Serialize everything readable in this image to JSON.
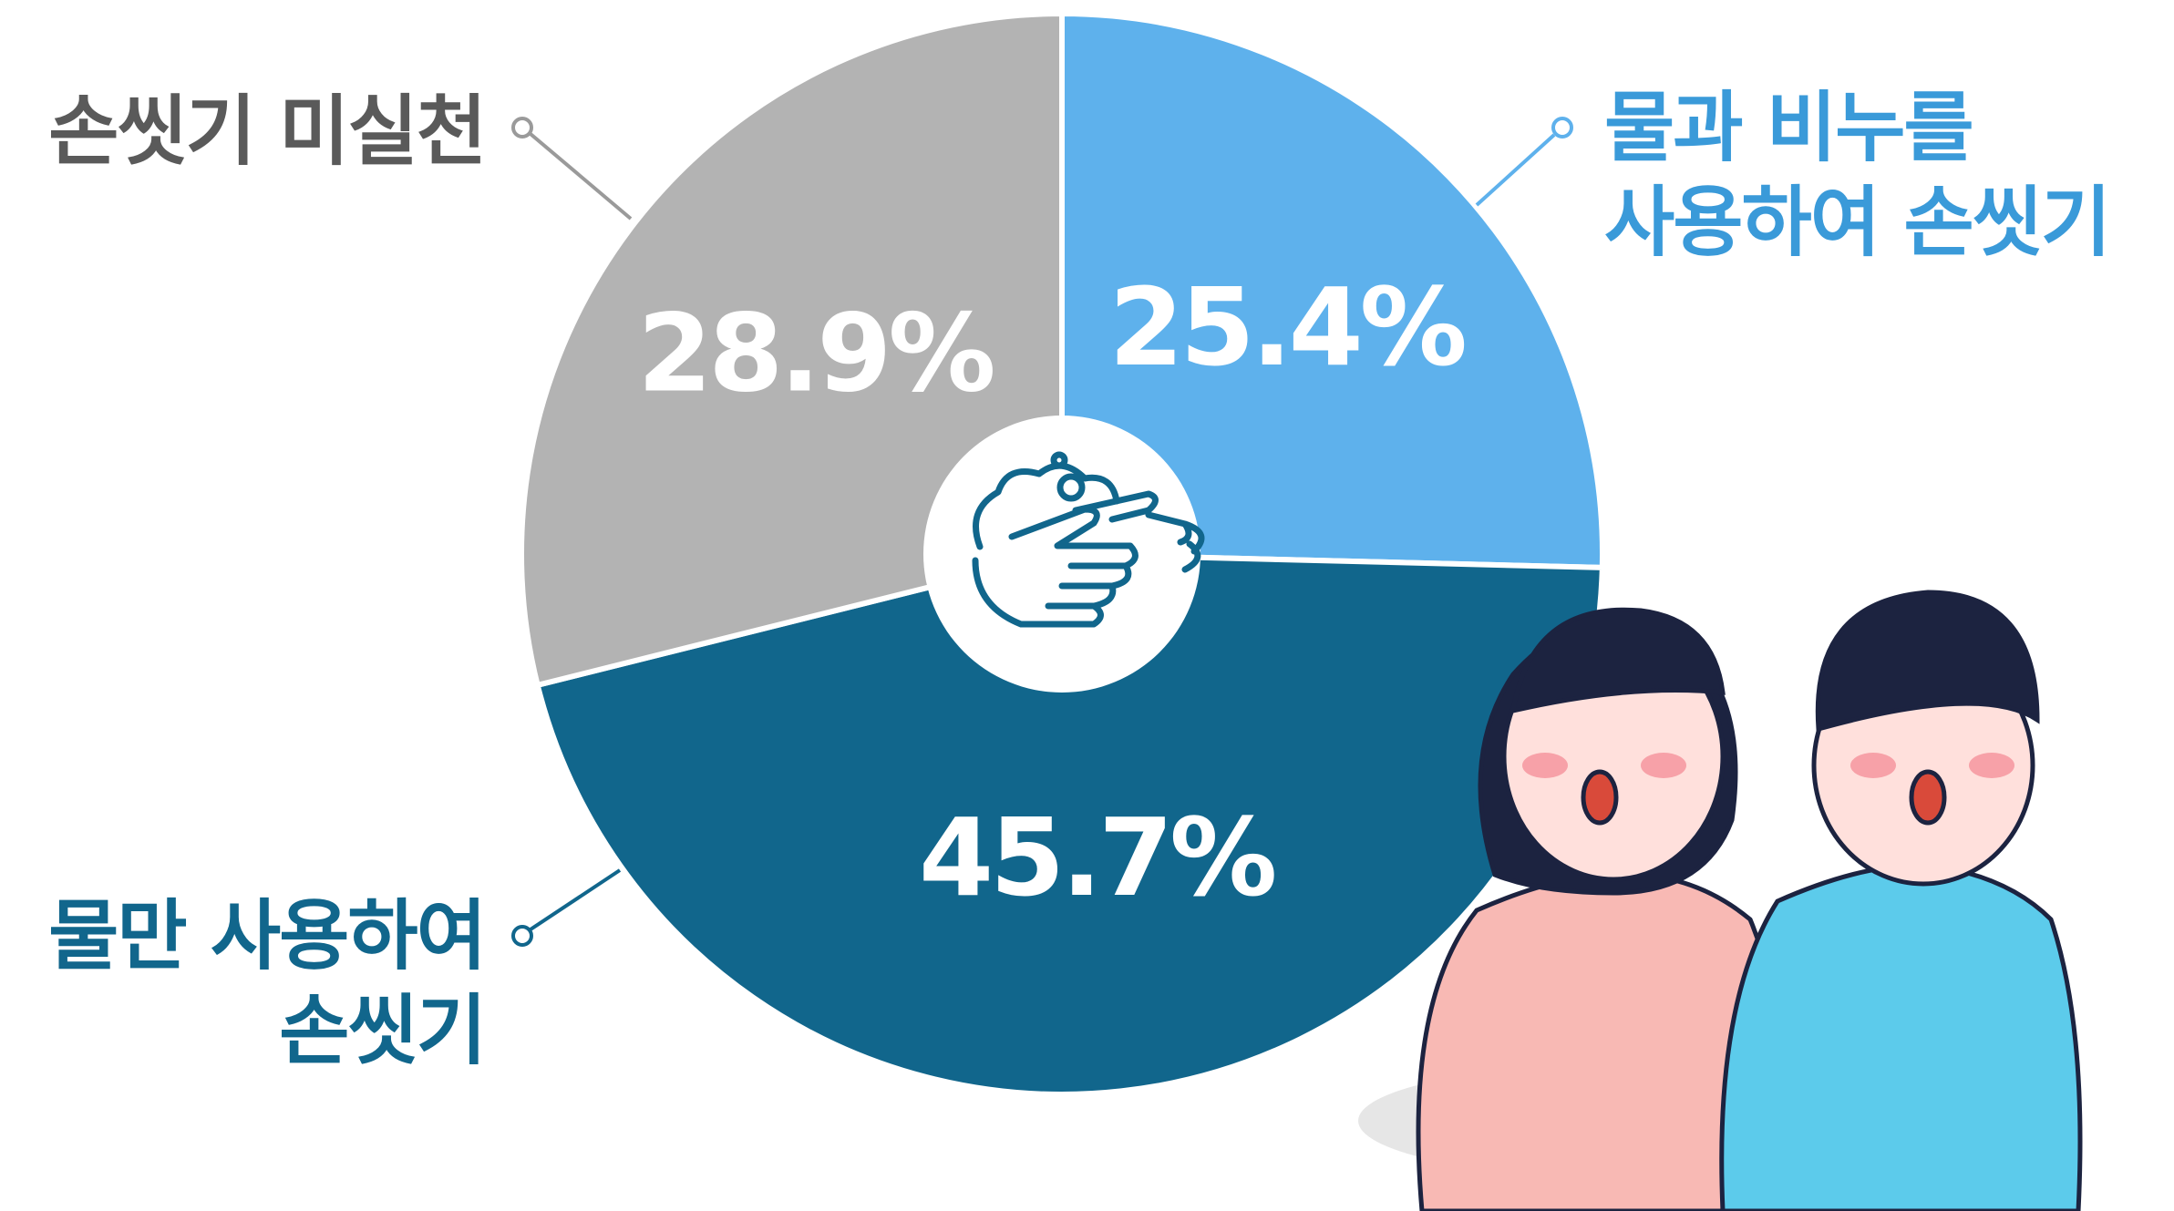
{
  "chart_data": {
    "type": "pie",
    "categories": [
      "물과 비누를\n사용하여 손씻기",
      "물만 사용하여\n손씻기",
      "손씻기 미실천"
    ],
    "values": [
      25.4,
      45.7,
      28.9
    ],
    "value_labels": [
      "25.4%",
      "45.7%",
      "28.9%"
    ],
    "colors": [
      "#5eb1ec",
      "#11668c",
      "#b3b3b3"
    ],
    "label_colors": [
      "#3a9ad9",
      "#11668c",
      "#5a5a5a"
    ]
  }
}
